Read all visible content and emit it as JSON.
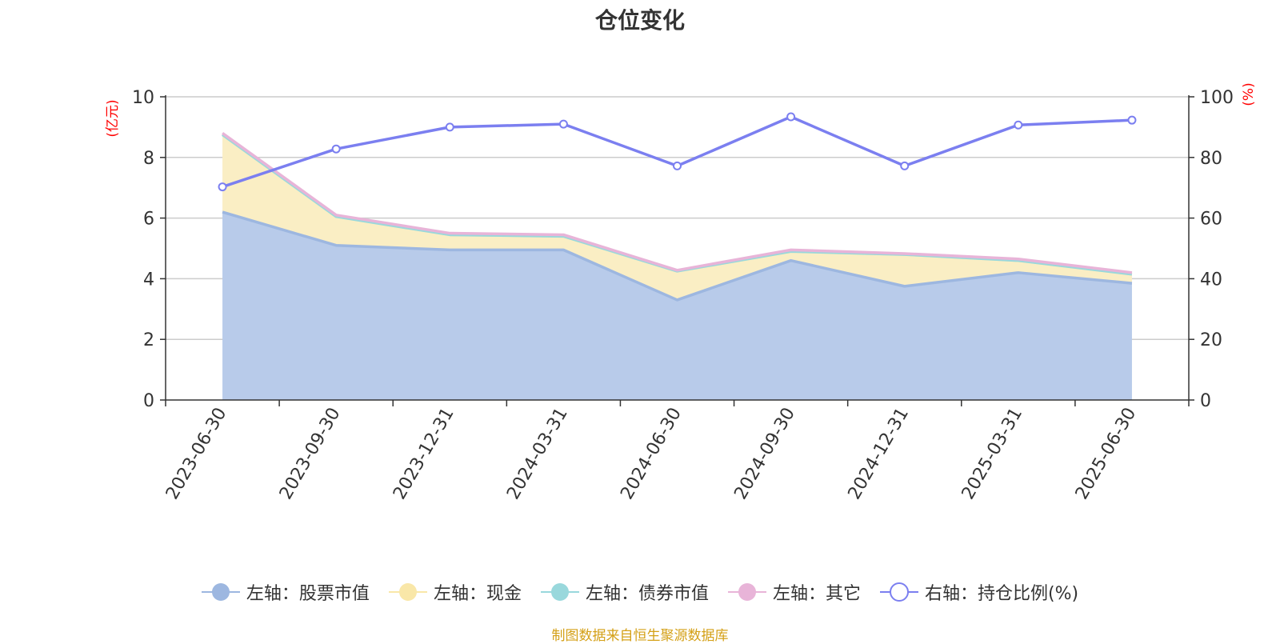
{
  "chart_data": {
    "type": "area",
    "title": "仓位变化",
    "categories": [
      "2023-06-30",
      "2023-09-30",
      "2023-12-31",
      "2024-03-31",
      "2024-06-30",
      "2024-09-30",
      "2024-12-31",
      "2025-03-31",
      "2025-06-30"
    ],
    "y_left": {
      "unit_label": "(亿元)",
      "range": [
        0,
        10
      ],
      "ticks": [
        "0",
        "2",
        "4",
        "6",
        "8",
        "10"
      ],
      "color": "#ff0000"
    },
    "y_right": {
      "unit_label": "(%)",
      "range": [
        0,
        100
      ],
      "ticks": [
        "0",
        "20",
        "40",
        "60",
        "80",
        "100"
      ],
      "color": "#ff0000"
    },
    "grid": true,
    "legend_position": "bottom",
    "series": [
      {
        "name": "左轴：股票市值",
        "axis": "left",
        "kind": "stacked-area",
        "color": "#9db7e0",
        "fill": "#b8cbea",
        "values": [
          6.2,
          5.1,
          4.95,
          4.95,
          3.3,
          4.6,
          3.75,
          4.2,
          3.85
        ]
      },
      {
        "name": "左轴：现金",
        "axis": "left",
        "kind": "stacked-area",
        "color": "#f9e7a8",
        "fill": "#faeec4",
        "values": [
          2.55,
          0.95,
          0.5,
          0.45,
          0.95,
          0.3,
          1.05,
          0.4,
          0.3
        ]
      },
      {
        "name": "左轴：债券市值",
        "axis": "left",
        "kind": "stacked-area",
        "color": "#99d8dc",
        "fill": "#99d8dc",
        "values": [
          0,
          0,
          0,
          0,
          0,
          0,
          0,
          0,
          0
        ]
      },
      {
        "name": "左轴：其它",
        "axis": "left",
        "kind": "stacked-area",
        "color": "#e8b4d8",
        "fill": "#e8b4d8",
        "values": [
          0.05,
          0.05,
          0.05,
          0.05,
          0.03,
          0.05,
          0.03,
          0.05,
          0.05
        ]
      },
      {
        "name": "右轴：持仓比例(%)",
        "axis": "right",
        "kind": "line",
        "color": "#7b7ff0",
        "values": [
          70.3,
          82.8,
          90,
          91,
          77.2,
          93.4,
          77.2,
          90.7,
          92.3
        ]
      }
    ]
  },
  "source": "制图数据来自恒生聚源数据库"
}
